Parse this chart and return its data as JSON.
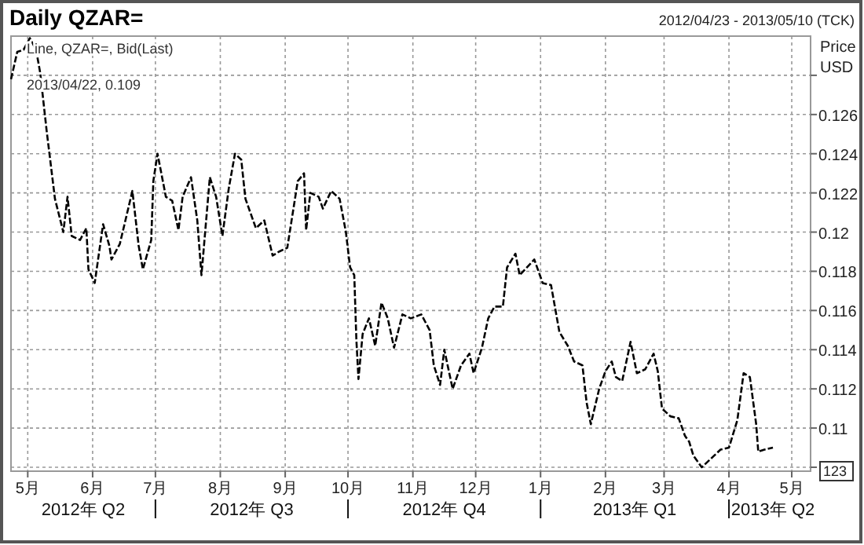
{
  "chart_data": {
    "type": "line",
    "title": "Daily QZAR=",
    "ylabel": "Price USD",
    "annotations": [
      "2012/04/23 - 2013/05/10 (TCK)",
      "Line, QZAR=, Bid(Last)",
      "2013/04/22, 0.109",
      "123",
      "2012年 Q2",
      "2012年 Q3",
      "2012年 Q4",
      "2013年 Q1",
      "2013年 Q2"
    ],
    "xlim": [
      "2012-04-23",
      "2013-05-10"
    ],
    "xticks": [
      {
        "value": "2012-05-01",
        "label": "5月"
      },
      {
        "value": "2012-06-01",
        "label": "6月"
      },
      {
        "value": "2012-07-01",
        "label": "7月"
      },
      {
        "value": "2012-08-01",
        "label": "8月"
      },
      {
        "value": "2012-09-01",
        "label": "9月"
      },
      {
        "value": "2012-10-01",
        "label": "10月"
      },
      {
        "value": "2012-11-01",
        "label": "11月"
      },
      {
        "value": "2012-12-01",
        "label": "12月"
      },
      {
        "value": "2013-01-01",
        "label": "1月"
      },
      {
        "value": "2013-02-01",
        "label": "2月"
      },
      {
        "value": "2013-03-01",
        "label": "3月"
      },
      {
        "value": "2013-04-01",
        "label": "4月"
      },
      {
        "value": "2013-05-01",
        "label": "5月"
      }
    ],
    "ylim": [
      0.1078,
      0.13
    ],
    "yticks": [
      {
        "value": 0.108,
        "label": null
      },
      0.11,
      0.112,
      0.114,
      0.116,
      0.118,
      0.12,
      0.122,
      0.124,
      0.126,
      {
        "value": 0.128,
        "label": null
      }
    ],
    "grid": true,
    "line_style": "dashed",
    "marker": "none",
    "x": [
      "2012-04-23",
      "2012-04-26",
      "2012-04-29",
      "2012-05-02",
      "2012-05-05",
      "2012-05-07",
      "2012-05-10",
      "2012-05-14",
      "2012-05-18",
      "2012-05-20",
      "2012-05-22",
      "2012-05-26",
      "2012-05-29",
      "2012-05-30",
      "2012-06-02",
      "2012-06-06",
      "2012-06-09",
      "2012-06-10",
      "2012-06-14",
      "2012-06-20",
      "2012-06-23",
      "2012-06-25",
      "2012-06-29",
      "2012-06-30",
      "2012-07-02",
      "2012-07-06",
      "2012-07-09",
      "2012-07-12",
      "2012-07-14",
      "2012-07-18",
      "2012-07-21",
      "2012-07-23",
      "2012-07-27",
      "2012-07-30",
      "2012-08-02",
      "2012-08-05",
      "2012-08-08",
      "2012-08-11",
      "2012-08-13",
      "2012-08-18",
      "2012-08-22",
      "2012-08-26",
      "2012-08-29",
      "2012-09-02",
      "2012-09-07",
      "2012-09-10",
      "2012-09-11",
      "2012-09-13",
      "2012-09-17",
      "2012-09-19",
      "2012-09-23",
      "2012-09-27",
      "2012-09-30",
      "2012-10-02",
      "2012-10-04",
      "2012-10-05",
      "2012-10-06",
      "2012-10-08",
      "2012-10-11",
      "2012-10-14",
      "2012-10-17",
      "2012-10-20",
      "2012-10-23",
      "2012-10-27",
      "2012-10-31",
      "2012-11-05",
      "2012-11-09",
      "2012-11-11",
      "2012-11-14",
      "2012-11-16",
      "2012-11-20",
      "2012-11-24",
      "2012-11-28",
      "2012-11-30",
      "2012-12-04",
      "2012-12-07",
      "2012-12-10",
      "2012-12-14",
      "2012-12-16",
      "2012-12-20",
      "2012-12-22",
      "2012-12-29",
      "2013-01-02",
      "2013-01-06",
      "2013-01-10",
      "2013-01-14",
      "2013-01-17",
      "2013-01-21",
      "2013-01-23",
      "2013-01-25",
      "2013-01-29",
      "2013-02-01",
      "2013-02-04",
      "2013-02-06",
      "2013-02-09",
      "2013-02-13",
      "2013-02-16",
      "2013-02-20",
      "2013-02-24",
      "2013-02-26",
      "2013-02-28",
      "2013-03-04",
      "2013-03-08",
      "2013-03-11",
      "2013-03-13",
      "2013-03-15",
      "2013-03-19",
      "2013-03-23",
      "2013-03-28",
      "2013-04-01",
      "2013-04-05",
      "2013-04-08",
      "2013-04-11",
      "2013-04-14",
      "2013-04-15",
      "2013-04-18",
      "2013-04-22"
    ],
    "series": [
      {
        "color": "#000000",
        "values": [
          0.1278,
          0.1292,
          0.1293,
          0.1299,
          0.1293,
          0.1281,
          0.1252,
          0.1217,
          0.12,
          0.1218,
          0.1198,
          0.1196,
          0.1202,
          0.1181,
          0.1174,
          0.1204,
          0.1193,
          0.1186,
          0.1194,
          0.1221,
          0.1193,
          0.1181,
          0.1196,
          0.1226,
          0.124,
          0.1218,
          0.1216,
          0.1201,
          0.1218,
          0.1228,
          0.1206,
          0.1178,
          0.1228,
          0.1218,
          0.1198,
          0.1222,
          0.124,
          0.1237,
          0.1217,
          0.1202,
          0.1206,
          0.1188,
          0.119,
          0.1192,
          0.1226,
          0.123,
          0.1201,
          0.122,
          0.1218,
          0.1212,
          0.1221,
          0.1217,
          0.12,
          0.1182,
          0.1178,
          0.1145,
          0.1125,
          0.1148,
          0.1156,
          0.1142,
          0.1164,
          0.1156,
          0.1141,
          0.1158,
          0.1156,
          0.1158,
          0.115,
          0.1132,
          0.1122,
          0.114,
          0.112,
          0.1132,
          0.1138,
          0.1128,
          0.1141,
          0.1156,
          0.1162,
          0.1162,
          0.1182,
          0.1189,
          0.1178,
          0.1186,
          0.1174,
          0.1173,
          0.1149,
          0.1142,
          0.1134,
          0.1132,
          0.1113,
          0.1102,
          0.112,
          0.1129,
          0.1134,
          0.1126,
          0.1124,
          0.1144,
          0.1128,
          0.113,
          0.1138,
          0.1129,
          0.111,
          0.1106,
          0.1105,
          0.1096,
          0.1093,
          0.1086,
          0.108,
          0.1084,
          0.1089,
          0.109,
          0.1104,
          0.1128,
          0.1126,
          0.1102,
          0.1088,
          0.1089,
          0.109
        ]
      }
    ]
  }
}
